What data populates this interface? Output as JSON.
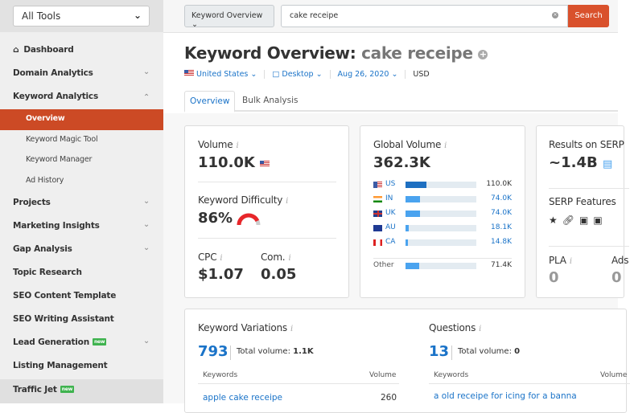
{
  "sidebar": {
    "tools_select": "All Tools",
    "items": [
      {
        "label": "Dashboard"
      },
      {
        "label": "Domain Analytics"
      },
      {
        "label": "Keyword Analytics"
      },
      {
        "label": "Projects"
      },
      {
        "label": "Marketing Insights"
      },
      {
        "label": "Gap Analysis"
      },
      {
        "label": "Topic Research"
      },
      {
        "label": "SEO Content Template"
      },
      {
        "label": "SEO Writing Assistant"
      },
      {
        "label": "Lead Generation",
        "badge": "new"
      },
      {
        "label": "Listing Management"
      },
      {
        "label": "Traffic Jet",
        "badge": "new"
      }
    ],
    "subitems": [
      "Overview",
      "Keyword Magic Tool",
      "Keyword Manager",
      "Ad History"
    ]
  },
  "topbar": {
    "tool_select": "Keyword Overview",
    "search_value": "cake receipe",
    "search_button": "Search"
  },
  "header": {
    "title": "Keyword Overview:",
    "keyword": "cake receipe",
    "database": "United States",
    "device": "Desktop",
    "date": "Aug 26, 2020",
    "currency": "USD"
  },
  "tabs": [
    "Overview",
    "Bulk Analysis"
  ],
  "volume": {
    "label": "Volume",
    "value": "110.0K"
  },
  "difficulty": {
    "label": "Keyword Difficulty",
    "value": "86%",
    "percent": 86
  },
  "cpc": {
    "label": "CPC",
    "value": "$1.07"
  },
  "com": {
    "label": "Com.",
    "value": "0.05"
  },
  "global": {
    "label": "Global Volume",
    "value": "362.3K",
    "rows": [
      {
        "code": "US",
        "value": "110.0K",
        "share": 0.3
      },
      {
        "code": "IN",
        "value": "74.0K",
        "share": 0.2
      },
      {
        "code": "UK",
        "value": "74.0K",
        "share": 0.2
      },
      {
        "code": "AU",
        "value": "18.1K",
        "share": 0.04
      },
      {
        "code": "CA",
        "value": "14.8K",
        "share": 0.03
      }
    ],
    "other": {
      "label": "Other",
      "value": "71.4K",
      "share": 0.19
    }
  },
  "serp": {
    "results_label": "Results on SERP",
    "results_value": "~1.4B",
    "features_label": "SERP Features",
    "pla_label": "PLA",
    "pla_value": "0",
    "ads_label": "Ads",
    "ads_value": "0"
  },
  "variations": {
    "label": "Keyword Variations",
    "count": "793",
    "total_label": "Total volume:",
    "total": "1.1K",
    "col_kw": "Keywords",
    "col_vol": "Volume",
    "rows": [
      {
        "kw": "apple cake receipe",
        "vol": "260"
      }
    ]
  },
  "questions": {
    "label": "Questions",
    "count": "13",
    "total_label": "Total volume:",
    "total": "0",
    "col_kw": "Keywords",
    "col_vol": "Volume",
    "rows": [
      {
        "kw": "a old receipe for icing for a banna"
      }
    ]
  }
}
